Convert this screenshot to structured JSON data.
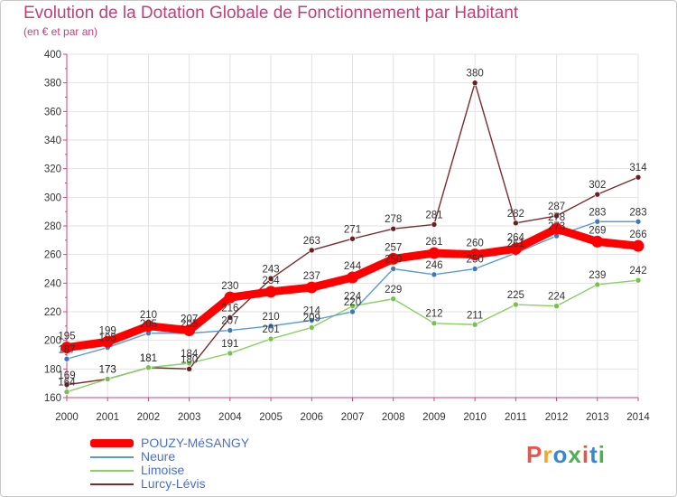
{
  "title": "Evolution de la Dotation Globale de Fonctionnement par Habitant",
  "subtitle": "(en € et par an)",
  "logo": {
    "text": "Proxiti",
    "colors": [
      "#e8554a",
      "#f5a623",
      "#3a86d4",
      "#4caf50",
      "#e8554a",
      "#3a86d4",
      "#4caf50"
    ]
  },
  "chart_data": {
    "type": "line",
    "title": "Evolution de la Dotation Globale de Fonctionnement par Habitant",
    "subtitle": "(en € et par an)",
    "x": [
      "2000",
      "2001",
      "2002",
      "2003",
      "2004",
      "2005",
      "2006",
      "2007",
      "2008",
      "2009",
      "2010",
      "2011",
      "2012",
      "2013",
      "2014"
    ],
    "ylim": [
      160,
      400
    ],
    "yticks": [
      160,
      180,
      200,
      220,
      240,
      260,
      280,
      300,
      320,
      340,
      360,
      380,
      400
    ],
    "grid": true,
    "legend_position": "bottom-left",
    "series": [
      {
        "name": "POUZY-MéSANGY",
        "color": "#ff0000",
        "values": [
          195,
          199,
          210,
          207,
          230,
          234,
          237,
          244,
          257,
          261,
          260,
          264,
          278,
          269,
          266
        ]
      },
      {
        "name": "Neure",
        "color": "#5b9bd5",
        "values": [
          187,
          195,
          205,
          205,
          207,
          210,
          214,
          220,
          250,
          246,
          250,
          261,
          273,
          283,
          283
        ]
      },
      {
        "name": "Limoise",
        "color": "#88d160",
        "values": [
          164,
          173,
          181,
          184,
          191,
          201,
          209,
          224,
          229,
          212,
          211,
          225,
          224,
          239,
          242
        ]
      },
      {
        "name": "Lurcy-Lévis",
        "color": "#7b2b2b",
        "values": [
          169,
          173,
          181,
          180,
          216,
          243,
          263,
          271,
          278,
          281,
          380,
          282,
          287,
          302,
          314
        ]
      }
    ]
  }
}
